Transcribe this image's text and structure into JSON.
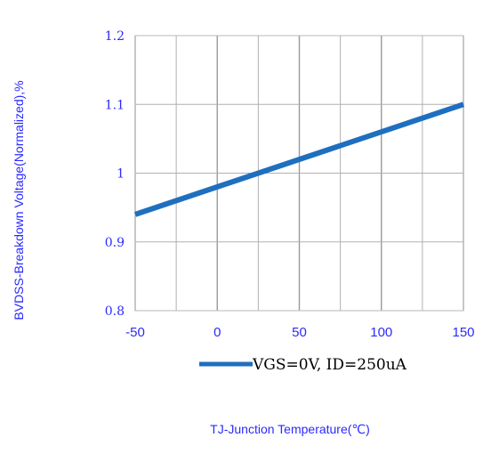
{
  "chart_data": {
    "type": "line",
    "xlabel": "TJ-Junction Temperature(℃)",
    "ylabel": "BVDSS-Breakdown Voltage(Normalized),%",
    "xlim": [
      -50,
      150
    ],
    "ylim": [
      0.8,
      1.2
    ],
    "x_ticks": [
      -50,
      0,
      50,
      100,
      150
    ],
    "x_tick_labels": [
      "-50",
      "0",
      "50",
      "100",
      "150"
    ],
    "y_ticks": [
      0.8,
      0.9,
      1,
      1.1,
      1.2
    ],
    "y_tick_labels": [
      "0.8",
      "0.9",
      "1",
      "1.1",
      "1.2"
    ],
    "x_minor_gridlines": [
      -25,
      25,
      75,
      125
    ],
    "grid": true,
    "legend_position": "bottom",
    "series": [
      {
        "name": "VGS=0V, ID=250uA",
        "color": "#1f6fbf",
        "x": [
          -50,
          150
        ],
        "y": [
          0.94,
          1.1
        ]
      }
    ]
  }
}
